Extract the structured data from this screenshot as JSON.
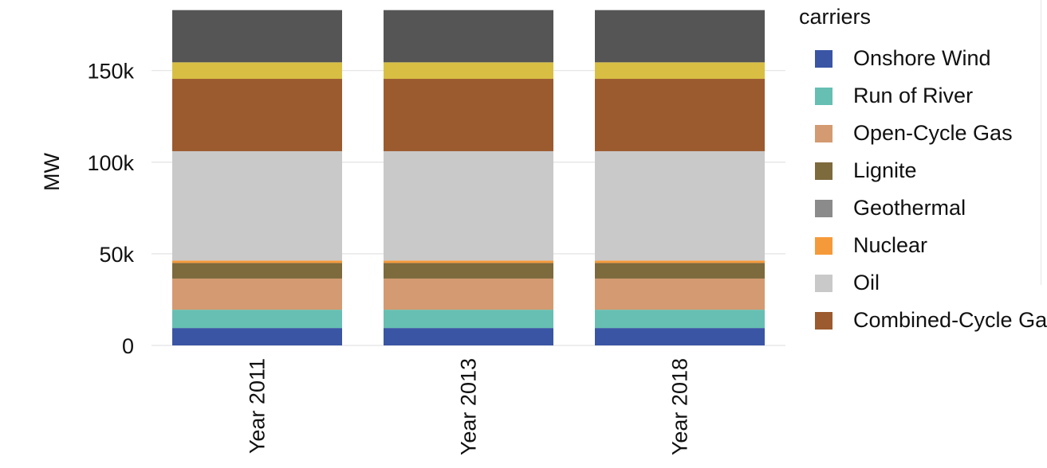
{
  "chart_data": {
    "type": "bar",
    "stacked": true,
    "categories": [
      "Year 2011",
      "Year 2013",
      "Year 2018"
    ],
    "ylabel": "MW",
    "ylim": [
      0,
      182000
    ],
    "yticks": [
      0,
      50000,
      100000,
      150000
    ],
    "ytick_labels": [
      "0",
      "50k",
      "100k",
      "150k"
    ],
    "grid": true,
    "legend_title": "carriers",
    "legend_position": "right",
    "series": [
      {
        "name": "Onshore Wind",
        "color": "#3a55a4",
        "values": [
          9500,
          9500,
          9500
        ]
      },
      {
        "name": "Run of River",
        "color": "#66bfb2",
        "values": [
          10000,
          10000,
          10000
        ]
      },
      {
        "name": "Open-Cycle Gas",
        "color": "#d49a71",
        "values": [
          17000,
          17000,
          17000
        ]
      },
      {
        "name": "Lignite",
        "color": "#7d6a3d",
        "values": [
          8500,
          8500,
          8500
        ]
      },
      {
        "name": "Geothermal",
        "color": "#8b8b8b",
        "values": [
          0,
          0,
          0
        ]
      },
      {
        "name": "Nuclear",
        "color": "#f59a3a",
        "values": [
          1300,
          1300,
          1300
        ]
      },
      {
        "name": "Oil",
        "color": "#c9c9c9",
        "values": [
          59700,
          59700,
          59700
        ]
      },
      {
        "name": "Combined-Cycle Gas",
        "color": "#9c5a2f",
        "values": [
          39500,
          39500,
          39500
        ]
      },
      {
        "color": "#d8bf43",
        "values": [
          9000,
          9000,
          9000
        ]
      },
      {
        "color": "#555555",
        "values": [
          28500,
          28500,
          28500
        ]
      }
    ]
  }
}
